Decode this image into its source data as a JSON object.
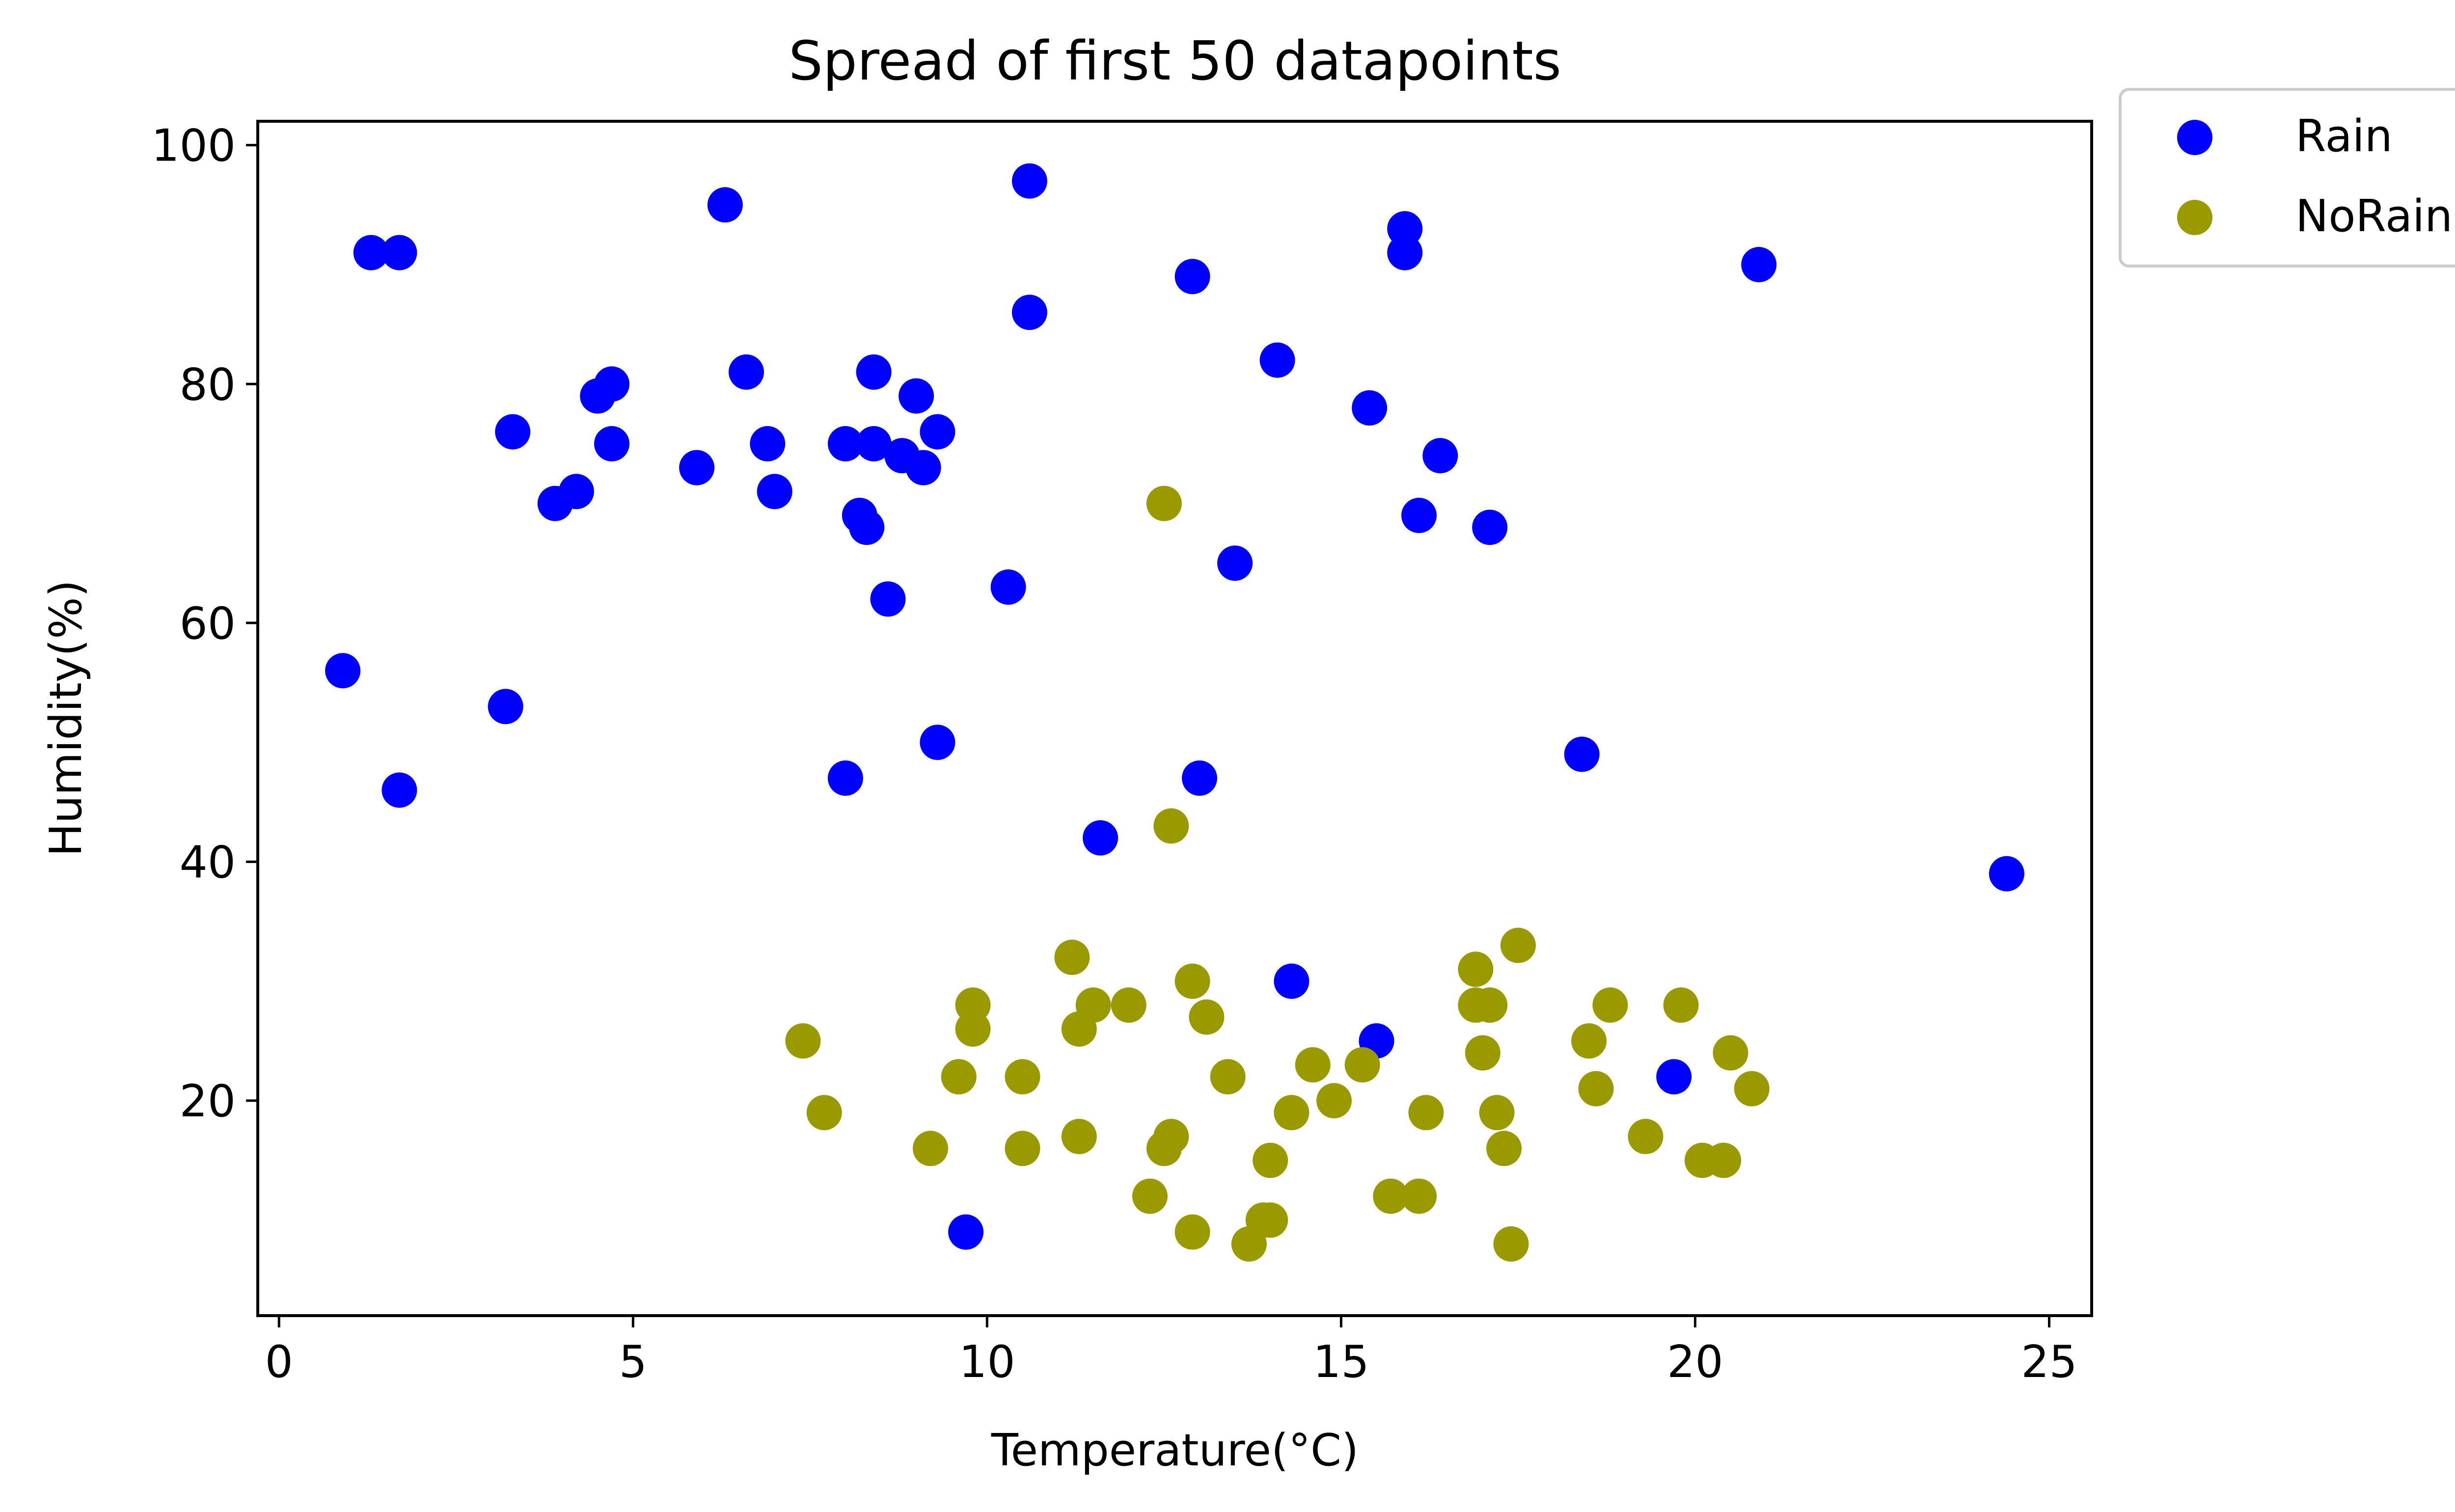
{
  "chart_data": {
    "type": "scatter",
    "title": "Spread of first 50 datapoints",
    "xlabel": "Temperature(°C)",
    "ylabel": "Humidity(%)",
    "xlim": [
      -0.3,
      25.6
    ],
    "ylim": [
      2,
      102
    ],
    "xticks": [
      0,
      5,
      10,
      15,
      20,
      25
    ],
    "yticks": [
      20,
      40,
      60,
      80,
      100
    ],
    "grid": false,
    "legend_position": "outside-top-right",
    "series": [
      {
        "name": "Rain",
        "color": "#0000ff",
        "points": [
          [
            1.3,
            91
          ],
          [
            1.7,
            91
          ],
          [
            0.9,
            56
          ],
          [
            1.7,
            46
          ],
          [
            3.2,
            53
          ],
          [
            3.3,
            76
          ],
          [
            3.9,
            70
          ],
          [
            4.2,
            71
          ],
          [
            4.5,
            79
          ],
          [
            4.7,
            80
          ],
          [
            4.7,
            75
          ],
          [
            5.9,
            73
          ],
          [
            6.3,
            95
          ],
          [
            6.6,
            81
          ],
          [
            6.9,
            75
          ],
          [
            7.0,
            71
          ],
          [
            8.0,
            75
          ],
          [
            8.0,
            47
          ],
          [
            8.2,
            69
          ],
          [
            8.3,
            68
          ],
          [
            8.4,
            81
          ],
          [
            8.4,
            75
          ],
          [
            8.6,
            62
          ],
          [
            8.8,
            74
          ],
          [
            9.0,
            79
          ],
          [
            9.1,
            73
          ],
          [
            9.3,
            76
          ],
          [
            9.3,
            50
          ],
          [
            9.7,
            9
          ],
          [
            10.3,
            63
          ],
          [
            10.6,
            97
          ],
          [
            10.6,
            86
          ],
          [
            11.6,
            42
          ],
          [
            12.9,
            89
          ],
          [
            13.0,
            47
          ],
          [
            13.5,
            65
          ],
          [
            14.1,
            82
          ],
          [
            14.3,
            30
          ],
          [
            15.4,
            78
          ],
          [
            15.5,
            25
          ],
          [
            15.9,
            93
          ],
          [
            15.9,
            91
          ],
          [
            16.1,
            69
          ],
          [
            16.4,
            74
          ],
          [
            17.1,
            68
          ],
          [
            18.4,
            49
          ],
          [
            19.7,
            22
          ],
          [
            20.9,
            90
          ],
          [
            24.4,
            39
          ]
        ]
      },
      {
        "name": "NoRain",
        "color": "#999900",
        "points": [
          [
            7.4,
            25
          ],
          [
            7.7,
            19
          ],
          [
            9.2,
            16
          ],
          [
            9.6,
            22
          ],
          [
            9.8,
            28
          ],
          [
            9.8,
            26
          ],
          [
            10.5,
            22
          ],
          [
            10.5,
            16
          ],
          [
            11.2,
            32
          ],
          [
            11.3,
            26
          ],
          [
            11.3,
            17
          ],
          [
            11.5,
            28
          ],
          [
            12.0,
            28
          ],
          [
            12.3,
            12
          ],
          [
            12.5,
            70
          ],
          [
            12.5,
            16
          ],
          [
            12.6,
            43
          ],
          [
            12.6,
            17
          ],
          [
            12.9,
            30
          ],
          [
            12.9,
            9
          ],
          [
            13.1,
            27
          ],
          [
            13.4,
            22
          ],
          [
            13.7,
            8
          ],
          [
            13.9,
            10
          ],
          [
            14.0,
            10
          ],
          [
            14.0,
            15
          ],
          [
            14.3,
            19
          ],
          [
            14.6,
            23
          ],
          [
            14.9,
            20
          ],
          [
            15.3,
            23
          ],
          [
            15.7,
            12
          ],
          [
            16.1,
            12
          ],
          [
            16.2,
            19
          ],
          [
            16.9,
            31
          ],
          [
            16.9,
            28
          ],
          [
            17.0,
            24
          ],
          [
            17.1,
            28
          ],
          [
            17.2,
            19
          ],
          [
            17.3,
            16
          ],
          [
            17.4,
            8
          ],
          [
            17.5,
            33
          ],
          [
            18.5,
            25
          ],
          [
            18.6,
            21
          ],
          [
            18.8,
            28
          ],
          [
            19.3,
            17
          ],
          [
            19.8,
            28
          ],
          [
            20.1,
            15
          ],
          [
            20.4,
            15
          ],
          [
            20.5,
            24
          ],
          [
            20.8,
            21
          ]
        ]
      }
    ]
  }
}
